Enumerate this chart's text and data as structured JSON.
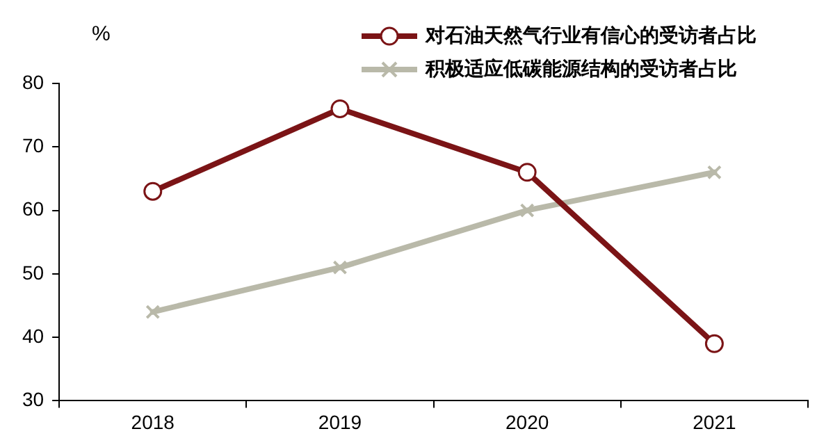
{
  "chart_data": {
    "type": "line",
    "ylabel": "%",
    "categories": [
      "2018",
      "2019",
      "2020",
      "2021"
    ],
    "series": [
      {
        "name": "对石油天然气行业有信心的受访者占比",
        "color": "#7b1416",
        "marker": "circle",
        "values": [
          63,
          76,
          66,
          39
        ]
      },
      {
        "name": "积极适应低碳能源结构的受访者占比",
        "color": "#b9b9a9",
        "marker": "cross",
        "values": [
          44,
          51,
          60,
          66
        ]
      }
    ],
    "ylim": [
      30,
      80
    ],
    "yticks": [
      30,
      40,
      50,
      60,
      70,
      80
    ],
    "grid": false,
    "legend": "top right",
    "line_style": "solid"
  }
}
